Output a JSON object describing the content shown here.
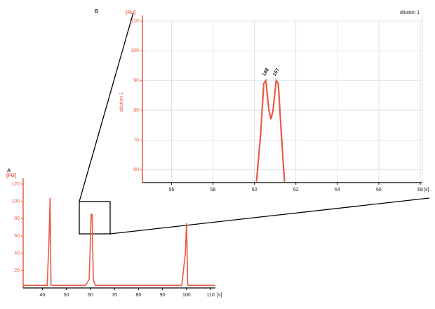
{
  "chart_data": [
    {
      "type": "line",
      "panel_label": "B",
      "title": "dilution 1",
      "y_label": "dilution 1",
      "y_unit": "[FU]",
      "x_unit": "[s]",
      "peak_labels": [
        "188",
        "157"
      ],
      "x": [
        60.1,
        60.3,
        60.45,
        60.55,
        60.7,
        60.8,
        60.9,
        61.05,
        61.15,
        61.3,
        61.45
      ],
      "series": [
        {
          "color": "#ea5a45",
          "values": [
            56,
            72,
            89,
            90,
            80,
            77,
            80,
            90,
            89,
            72,
            56
          ]
        }
      ],
      "xlim": [
        54.6,
        68.1
      ],
      "xticks": [
        56,
        58,
        60,
        62,
        64,
        66,
        68
      ],
      "ylim": [
        55.7,
        110
      ],
      "yticks": [
        60,
        70,
        80,
        90,
        100,
        110
      ],
      "grid": true
    },
    {
      "type": "line",
      "panel_label": "A",
      "y_unit": "[FU]",
      "x_unit": "[s]",
      "x": [
        32,
        42,
        42.8,
        43.2,
        43.6,
        45,
        58,
        59.5,
        60.3,
        60.7,
        61.2,
        62,
        80,
        98,
        99.5,
        100,
        100.5,
        102,
        112
      ],
      "series": [
        {
          "color": "#ea5a45",
          "values": [
            3,
            3,
            60,
            104,
            3,
            3,
            3,
            10,
            85,
            85,
            10,
            3,
            3,
            3,
            40,
            75,
            3,
            3,
            3
          ]
        }
      ],
      "xlim": [
        32,
        112
      ],
      "xticks": [
        40,
        50,
        60,
        70,
        80,
        90,
        100,
        110
      ],
      "ylim": [
        0,
        120
      ],
      "yticks": [
        20,
        40,
        60,
        80,
        100,
        120
      ],
      "grid": false
    }
  ]
}
